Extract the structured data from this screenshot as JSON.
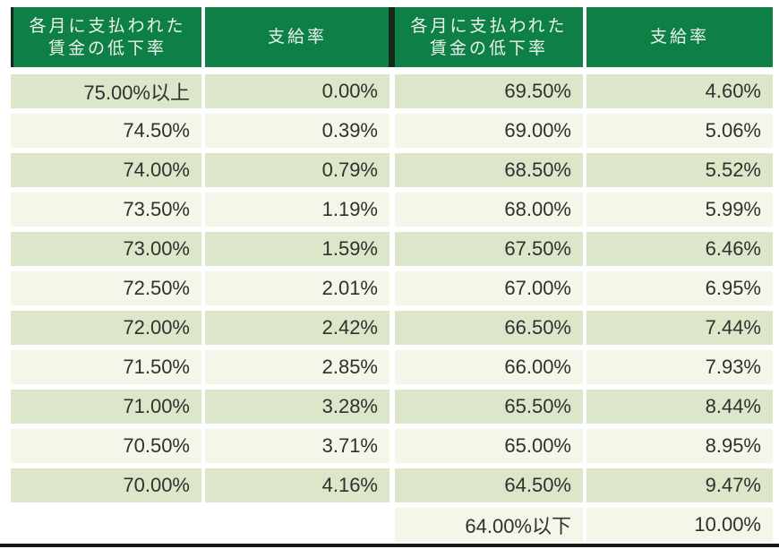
{
  "colors": {
    "header_bg": "#0e7f45",
    "header_text": "#eaf4ec",
    "row_dark": "#dce7c9",
    "row_light": "#f3f6e8",
    "cell_text": "#303030",
    "divider_dark": "#15291b",
    "bottom_line": "#1a1a1a",
    "page_bg": "#ffffff"
  },
  "chart_data": {
    "type": "table",
    "header": {
      "rate_line1": "各月に支払われた",
      "rate_line2": "賃金の低下率",
      "rate_full": "各月に支払われた賃金の低下率",
      "pay": "支給率"
    },
    "left_rows": [
      {
        "rate": "75.00%以上",
        "pay": "0.00%"
      },
      {
        "rate": "74.50%",
        "pay": "0.39%"
      },
      {
        "rate": "74.00%",
        "pay": "0.79%"
      },
      {
        "rate": "73.50%",
        "pay": "1.19%"
      },
      {
        "rate": "73.00%",
        "pay": "1.59%"
      },
      {
        "rate": "72.50%",
        "pay": "2.01%"
      },
      {
        "rate": "72.00%",
        "pay": "2.42%"
      },
      {
        "rate": "71.50%",
        "pay": "2.85%"
      },
      {
        "rate": "71.00%",
        "pay": "3.28%"
      },
      {
        "rate": "70.50%",
        "pay": "3.71%"
      },
      {
        "rate": "70.00%",
        "pay": "4.16%"
      }
    ],
    "right_rows": [
      {
        "rate": "69.50%",
        "pay": "4.60%"
      },
      {
        "rate": "69.00%",
        "pay": "5.06%"
      },
      {
        "rate": "68.50%",
        "pay": "5.52%"
      },
      {
        "rate": "68.00%",
        "pay": "5.99%"
      },
      {
        "rate": "67.50%",
        "pay": "6.46%"
      },
      {
        "rate": "67.00%",
        "pay": "6.95%"
      },
      {
        "rate": "66.50%",
        "pay": "7.44%"
      },
      {
        "rate": "66.00%",
        "pay": "7.93%"
      },
      {
        "rate": "65.50%",
        "pay": "8.44%"
      },
      {
        "rate": "65.00%",
        "pay": "8.95%"
      },
      {
        "rate": "64.50%",
        "pay": "9.47%"
      },
      {
        "rate": "64.00%以下",
        "pay": "10.00%"
      }
    ]
  }
}
